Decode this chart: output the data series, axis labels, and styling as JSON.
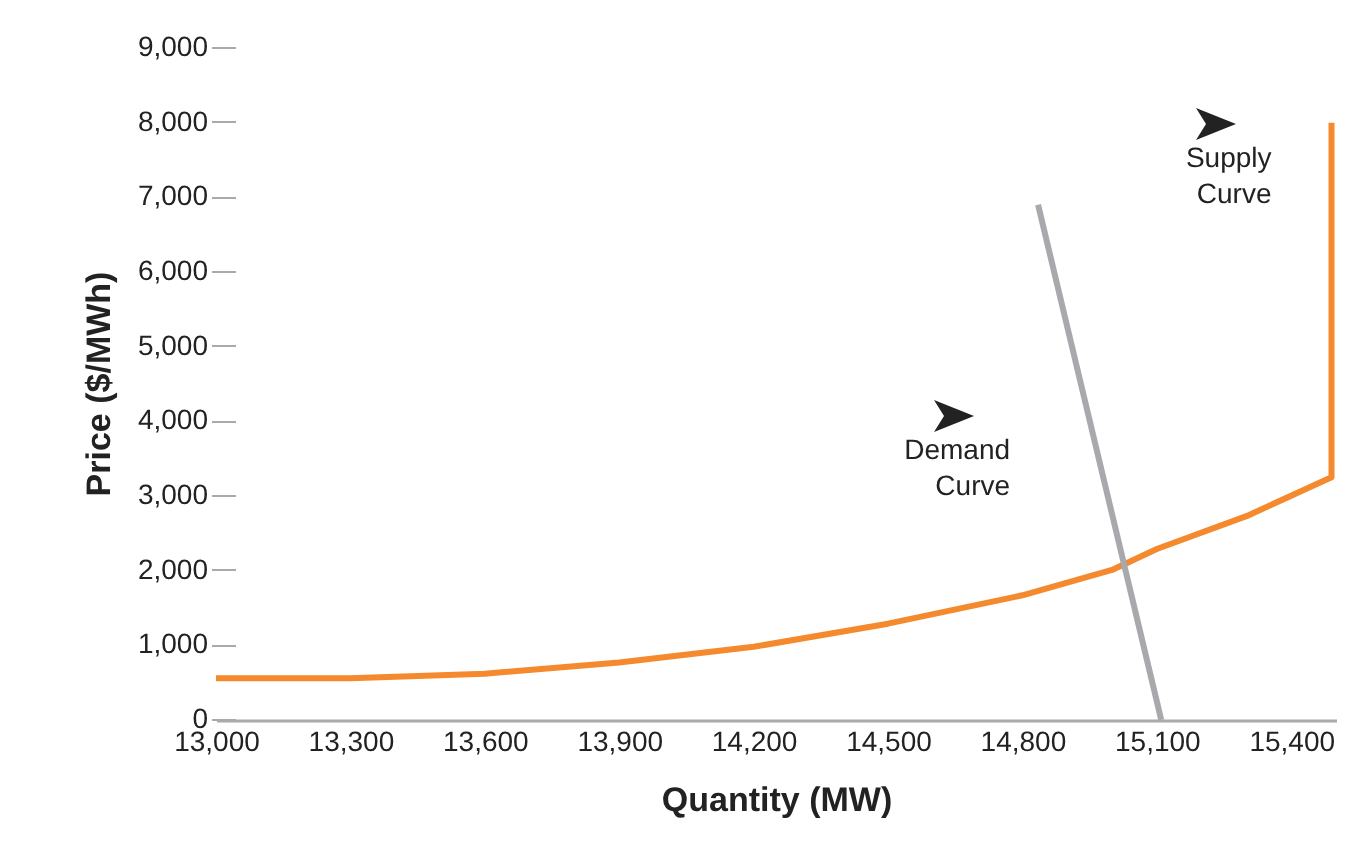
{
  "chart_data": {
    "type": "line",
    "xlabel": "Quantity (MW)",
    "ylabel": "Price ($/MWh)",
    "xlim": [
      13000,
      15500
    ],
    "ylim": [
      0,
      9000
    ],
    "xticks": [
      {
        "value": 13000,
        "label": "13,000"
      },
      {
        "value": 13300,
        "label": "13,300"
      },
      {
        "value": 13600,
        "label": "13,600"
      },
      {
        "value": 13900,
        "label": "13,900"
      },
      {
        "value": 14200,
        "label": "14,200"
      },
      {
        "value": 14500,
        "label": "14,500"
      },
      {
        "value": 14800,
        "label": "14,800"
      },
      {
        "value": 15100,
        "label": "15,100"
      },
      {
        "value": 15400,
        "label": "15,400"
      }
    ],
    "yticks": [
      0,
      {
        "value": 1000,
        "label": "1,000"
      },
      {
        "value": 2000,
        "label": "2,000"
      },
      {
        "value": 3000,
        "label": "3,000"
      },
      {
        "value": 4000,
        "label": "4,000"
      },
      {
        "value": 5000,
        "label": "5,000"
      },
      {
        "value": 6000,
        "label": "6,000"
      },
      {
        "value": 7000,
        "label": "7,000"
      },
      {
        "value": 8000,
        "label": "8,000"
      },
      {
        "value": 9000,
        "label": "9,000"
      }
    ],
    "grid": false,
    "legend": false,
    "series": [
      {
        "name": "Supply Curve",
        "color": "#f5892d",
        "x": [
          13000,
          13300,
          13600,
          13900,
          14200,
          14500,
          14800,
          15000,
          15100,
          15300,
          15490,
          15490
        ],
        "values": [
          560,
          560,
          620,
          770,
          980,
          1290,
          1670,
          2010,
          2290,
          2730,
          3250,
          8000
        ]
      },
      {
        "name": "Demand Curve",
        "color": "#a7a9ac",
        "x": [
          14835,
          15110
        ],
        "values": [
          6900,
          0
        ]
      }
    ]
  }
}
